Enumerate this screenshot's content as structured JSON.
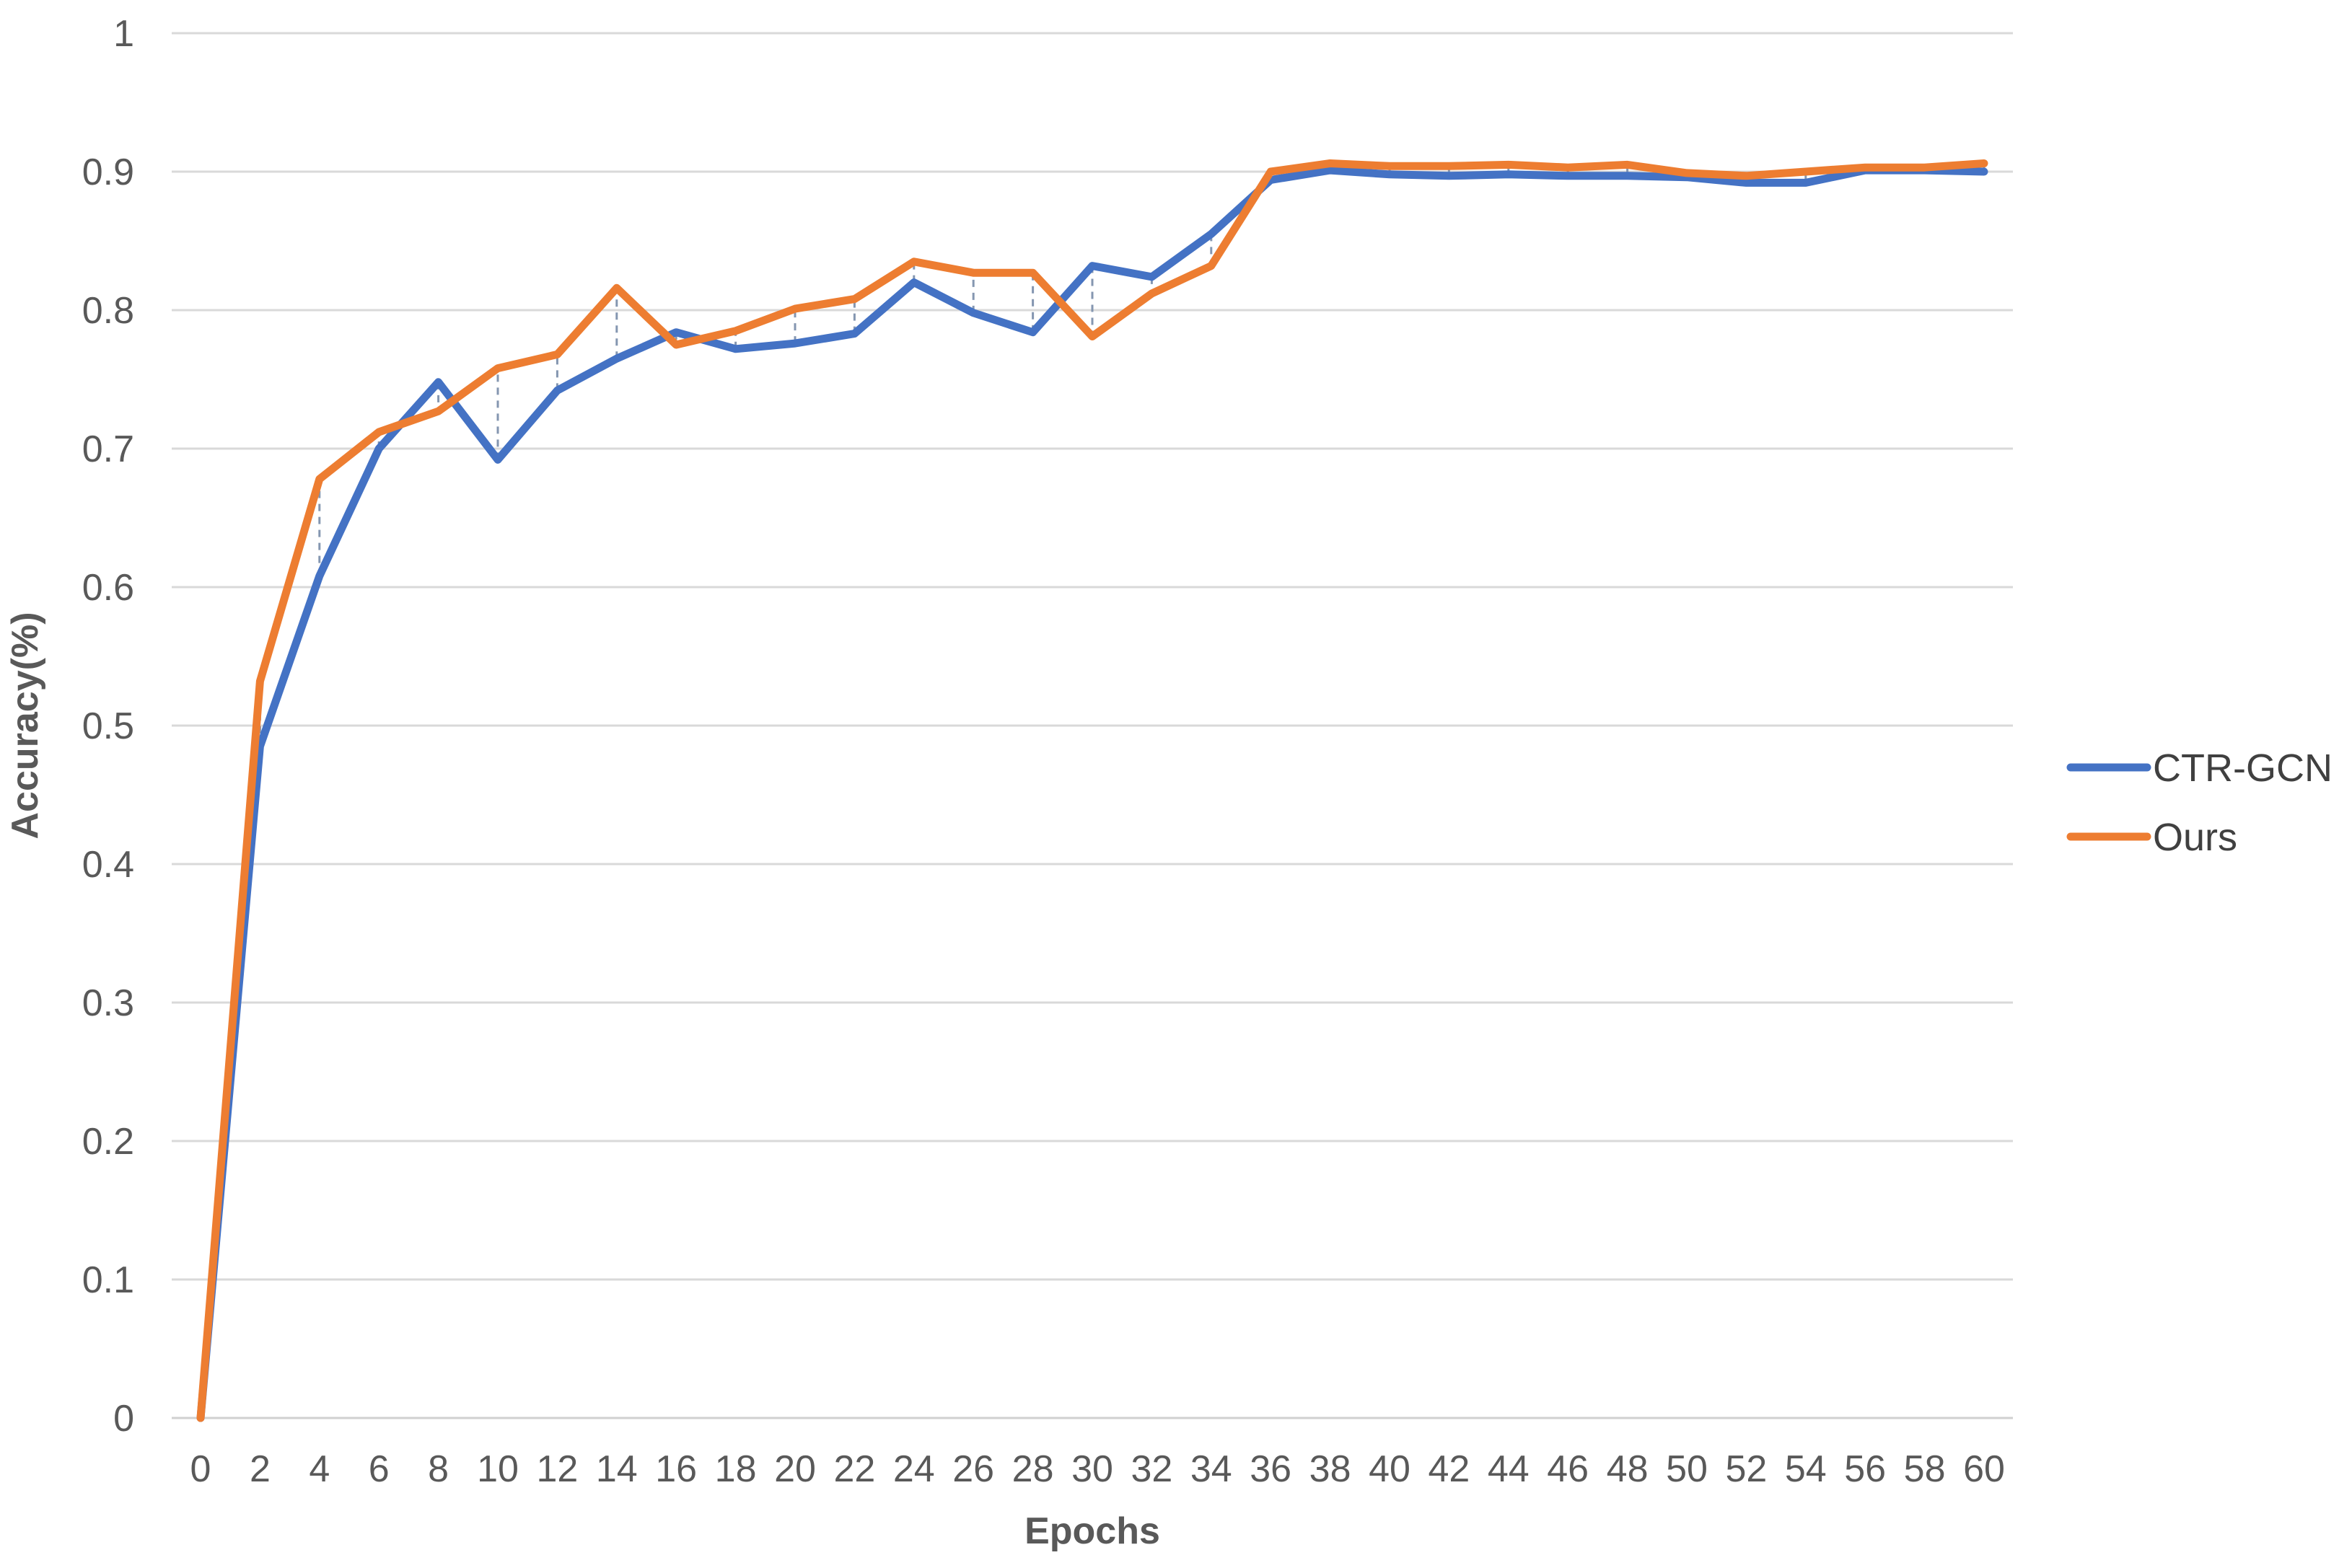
{
  "chart_data": {
    "type": "line",
    "title": "",
    "xlabel": "Epochs",
    "ylabel": "Accuracy(%)",
    "x": [
      0,
      2,
      4,
      6,
      8,
      10,
      12,
      14,
      16,
      18,
      20,
      22,
      24,
      26,
      28,
      30,
      32,
      34,
      36,
      38,
      40,
      42,
      44,
      46,
      48,
      50,
      52,
      54,
      56,
      58,
      60
    ],
    "xticks": [
      "0",
      "2",
      "4",
      "6",
      "8",
      "10",
      "12",
      "14",
      "16",
      "18",
      "20",
      "22",
      "24",
      "26",
      "28",
      "30",
      "32",
      "34",
      "36",
      "38",
      "40",
      "42",
      "44",
      "46",
      "48",
      "50",
      "52",
      "54",
      "56",
      "58",
      "60"
    ],
    "yticks": [
      "0",
      "0.1",
      "0.2",
      "0.3",
      "0.4",
      "0.5",
      "0.6",
      "0.7",
      "0.8",
      "0.9",
      "1"
    ],
    "ylim": [
      0,
      1
    ],
    "grid": "horizontal",
    "legend_position": "right",
    "drop_lines": true,
    "series": [
      {
        "name": "CTR-GCN",
        "color": "#4472C4",
        "values": [
          0,
          0.485,
          0.608,
          0.7,
          0.748,
          0.692,
          0.742,
          0.765,
          0.784,
          0.772,
          0.776,
          0.783,
          0.82,
          0.798,
          0.784,
          0.832,
          0.824,
          0.855,
          0.894,
          0.901,
          0.898,
          0.897,
          0.898,
          0.897,
          0.897,
          0.896,
          0.892,
          0.892,
          0.901,
          0.901,
          0.9
        ]
      },
      {
        "name": "Ours",
        "color": "#ED7D31",
        "values": [
          0,
          0.532,
          0.678,
          0.712,
          0.727,
          0.758,
          0.768,
          0.816,
          0.775,
          0.785,
          0.801,
          0.808,
          0.835,
          0.827,
          0.827,
          0.781,
          0.812,
          0.832,
          0.9,
          0.906,
          0.904,
          0.904,
          0.905,
          0.903,
          0.905,
          0.899,
          0.897,
          0.9,
          0.903,
          0.903,
          0.906
        ]
      }
    ]
  }
}
